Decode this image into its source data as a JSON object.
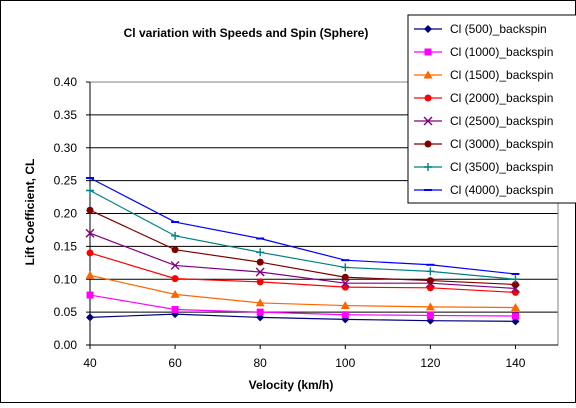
{
  "chart_data": {
    "type": "line",
    "title": "Cl variation with Speeds and Spin (Sphere)",
    "xlabel": "Velocity (km/h)",
    "ylabel": "Lift Coefficient, CL",
    "x": [
      40,
      60,
      80,
      100,
      120,
      140
    ],
    "x_ticks": [
      "40",
      "60",
      "80",
      "100",
      "120",
      "140"
    ],
    "xlim": [
      40,
      150
    ],
    "ylim": [
      0,
      0.4
    ],
    "y_ticks": [
      "0.00",
      "0.05",
      "0.10",
      "0.15",
      "0.20",
      "0.25",
      "0.30",
      "0.35",
      "0.40"
    ],
    "grid": "horizontal",
    "legend_position": "top-right",
    "series": [
      {
        "name": "Cl (500)_backspin",
        "color": "#000080",
        "marker": "diamond",
        "values": [
          0.042,
          0.047,
          0.042,
          0.039,
          0.037,
          0.036
        ]
      },
      {
        "name": "Cl (1000)_backspin",
        "color": "#ff00ff",
        "marker": "square",
        "values": [
          0.076,
          0.054,
          0.05,
          0.046,
          0.045,
          0.044
        ]
      },
      {
        "name": "Cl (1500)_backspin",
        "color": "#ff6600",
        "marker": "triangle",
        "values": [
          0.106,
          0.077,
          0.064,
          0.06,
          0.058,
          0.057
        ]
      },
      {
        "name": "Cl (2000)_backspin",
        "color": "#ff0000",
        "marker": "circle",
        "values": [
          0.14,
          0.101,
          0.096,
          0.088,
          0.087,
          0.08
        ]
      },
      {
        "name": "Cl (2500)_backspin",
        "color": "#800080",
        "marker": "x",
        "values": [
          0.17,
          0.121,
          0.111,
          0.094,
          0.094,
          0.086
        ]
      },
      {
        "name": "Cl (3000)_backspin",
        "color": "#800000",
        "marker": "circle",
        "values": [
          0.205,
          0.145,
          0.126,
          0.103,
          0.098,
          0.092
        ]
      },
      {
        "name": "Cl (3500)_backspin",
        "color": "#008080",
        "marker": "plus",
        "values": [
          0.235,
          0.166,
          0.141,
          0.118,
          0.112,
          0.1
        ]
      },
      {
        "name": "Cl (4000)_backspin",
        "color": "#0000ff",
        "marker": "dash",
        "values": [
          0.254,
          0.187,
          0.162,
          0.129,
          0.122,
          0.108
        ]
      }
    ]
  }
}
